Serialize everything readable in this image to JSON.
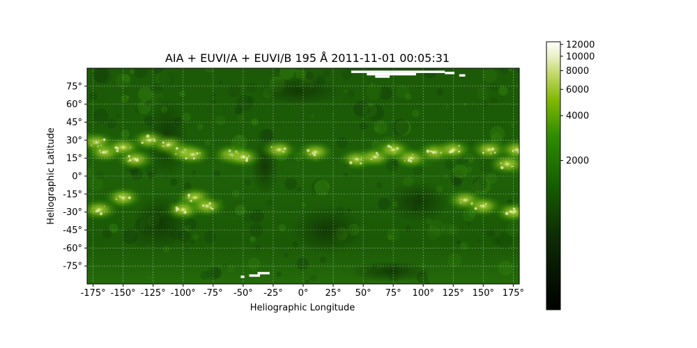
{
  "chart_data": {
    "type": "heatmap",
    "title": "AIA + EUVI/A + EUVI/B 195 Å 2011-11-01 00:05:31",
    "xlabel": "Heliographic Longitude",
    "ylabel": "Heliographic Latitude",
    "xlim": [
      -180,
      180
    ],
    "ylim": [
      -90,
      90
    ],
    "x_ticks": [
      -175,
      -150,
      -125,
      -100,
      -75,
      -50,
      -25,
      0,
      25,
      50,
      75,
      100,
      125,
      150,
      175
    ],
    "y_ticks": [
      -75,
      -60,
      -45,
      -30,
      -15,
      0,
      15,
      30,
      45,
      60,
      75
    ],
    "x_tick_labels": [
      "-175°",
      "-150°",
      "-125°",
      "-100°",
      "-75°",
      "-50°",
      "-25°",
      "0°",
      "25°",
      "50°",
      "75°",
      "100°",
      "125°",
      "150°",
      "175°"
    ],
    "y_tick_labels": [
      "-75°",
      "-60°",
      "-45°",
      "-30°",
      "-15°",
      "0°",
      "15°",
      "30°",
      "45°",
      "60°",
      "75°"
    ],
    "grid": true,
    "colorbar": {
      "scale": "log",
      "ticks": [
        2000,
        4000,
        6000,
        8000,
        10000,
        12000
      ],
      "tick_labels": [
        "2000",
        "4000",
        "6000",
        "8000",
        "10000",
        "12000"
      ],
      "vmin": 200,
      "vmax": 12500
    },
    "active_regions": [
      {
        "lon": -172,
        "lat": 28
      },
      {
        "lon": -165,
        "lat": 20
      },
      {
        "lon": -150,
        "lat": 24
      },
      {
        "lon": -140,
        "lat": 14
      },
      {
        "lon": -128,
        "lat": 30
      },
      {
        "lon": -112,
        "lat": 26
      },
      {
        "lon": -100,
        "lat": 20
      },
      {
        "lon": -92,
        "lat": 18
      },
      {
        "lon": -60,
        "lat": 18
      },
      {
        "lon": -50,
        "lat": 16
      },
      {
        "lon": -20,
        "lat": 22
      },
      {
        "lon": 10,
        "lat": 20
      },
      {
        "lon": 45,
        "lat": 14
      },
      {
        "lon": 60,
        "lat": 16
      },
      {
        "lon": 75,
        "lat": 22
      },
      {
        "lon": 90,
        "lat": 15
      },
      {
        "lon": 110,
        "lat": 20
      },
      {
        "lon": 125,
        "lat": 22
      },
      {
        "lon": 155,
        "lat": 22
      },
      {
        "lon": 170,
        "lat": 10
      },
      {
        "lon": 178,
        "lat": 22
      },
      {
        "lon": -150,
        "lat": -18
      },
      {
        "lon": -170,
        "lat": -28
      },
      {
        "lon": -90,
        "lat": -18
      },
      {
        "lon": -100,
        "lat": -28
      },
      {
        "lon": -80,
        "lat": -25
      },
      {
        "lon": 135,
        "lat": -20
      },
      {
        "lon": 150,
        "lat": -25
      },
      {
        "lon": 175,
        "lat": -30
      }
    ],
    "missing_data": [
      {
        "lon": [
          40,
          118
        ],
        "lat": [
          86,
          88
        ]
      },
      {
        "lon": [
          53,
          94
        ],
        "lat": [
          84,
          86
        ]
      },
      {
        "lon": [
          60,
          72
        ],
        "lat": [
          82,
          84
        ]
      },
      {
        "lon": [
          118,
          126
        ],
        "lat": [
          85,
          87
        ]
      },
      {
        "lon": [
          130,
          135
        ],
        "lat": [
          83,
          85
        ]
      },
      {
        "lon": [
          -52,
          -49
        ],
        "lat": [
          -85,
          -83
        ]
      },
      {
        "lon": [
          -45,
          -36
        ],
        "lat": [
          -84,
          -82
        ]
      },
      {
        "lon": [
          -38,
          -28
        ],
        "lat": [
          -82,
          -80
        ]
      }
    ],
    "colors": {
      "low": "#000000",
      "mid": "#1a6b00",
      "high": "#88bb00",
      "max": "#ffffff"
    }
  }
}
